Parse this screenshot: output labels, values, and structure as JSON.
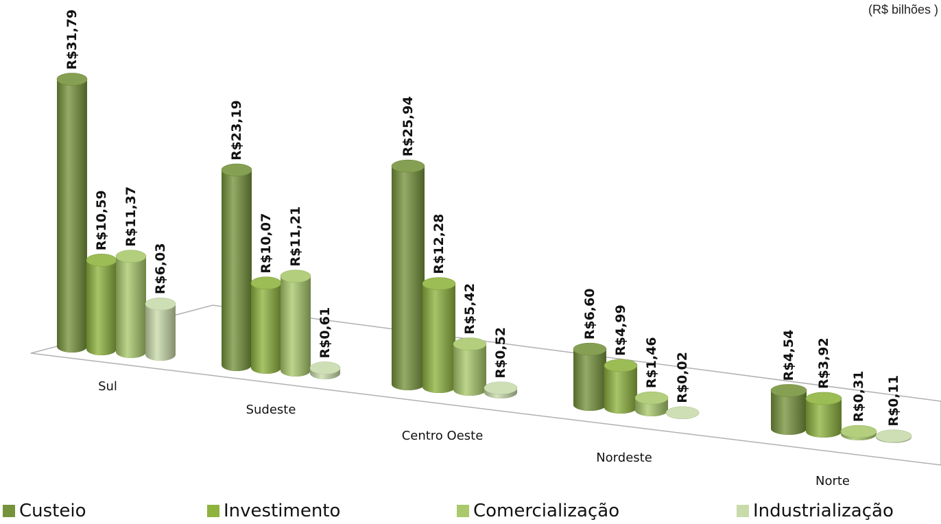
{
  "chart_data": {
    "type": "bar",
    "unit_label": "(R$ bilhões )",
    "categories": [
      "Sul",
      "Sudeste",
      "Centro Oeste",
      "Nordeste",
      "Norte"
    ],
    "series": [
      {
        "name": "Custeio",
        "color": "#76933c",
        "values": [
          31.79,
          23.19,
          25.94,
          6.6,
          4.54
        ],
        "labels": [
          "R$31,79",
          "R$23,19",
          "R$25,94",
          "R$6,60",
          "R$4,54"
        ]
      },
      {
        "name": "Investimento",
        "color": "#8eb33f",
        "values": [
          10.59,
          10.07,
          12.28,
          4.99,
          3.92
        ],
        "labels": [
          "R$10,59",
          "R$10,07",
          "R$12,28",
          "R$4,99",
          "R$3,92"
        ]
      },
      {
        "name": "Comercialização",
        "color": "#a9c96c",
        "values": [
          11.37,
          11.21,
          5.42,
          1.46,
          0.31
        ],
        "labels": [
          "R$11,37",
          "R$11,21",
          "R$5,42",
          "R$1,46",
          "R$0,31"
        ]
      },
      {
        "name": "Industrialização",
        "color": "#c9dbab",
        "values": [
          6.03,
          0.61,
          0.52,
          0.02,
          0.11
        ],
        "labels": [
          "R$6,03",
          "R$0,61",
          "R$0,52",
          "R$0,02",
          "R$0,11"
        ]
      }
    ],
    "legend_position": "bottom",
    "grid": false
  }
}
